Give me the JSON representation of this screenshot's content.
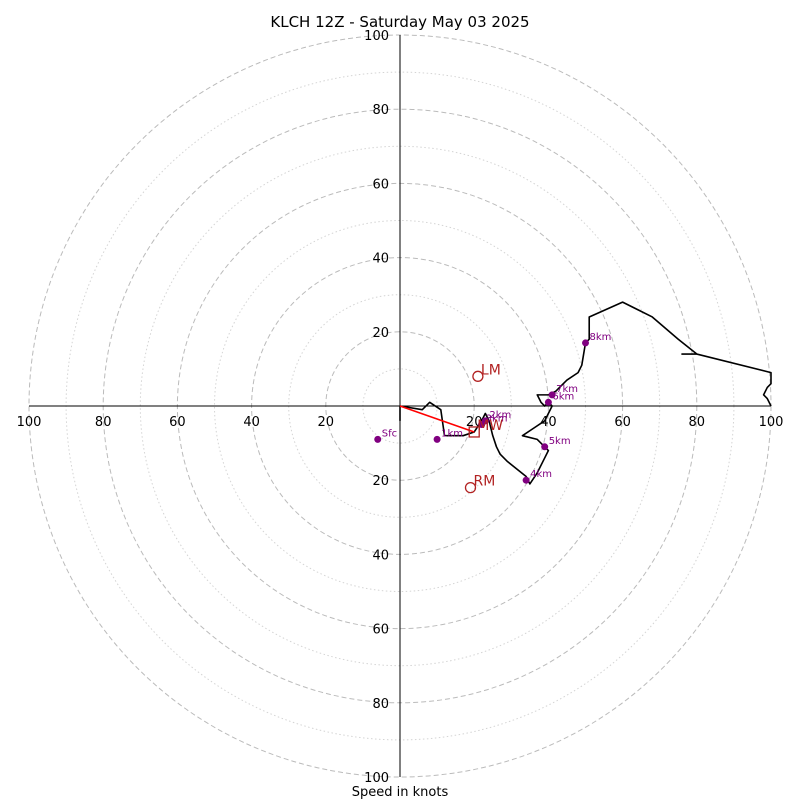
{
  "chart_data": {
    "type": "scatter",
    "title": "KLCH 12Z - Saturday May 03 2025",
    "xlabel": "Speed in knots",
    "ylabel": "",
    "xlim": [
      -100,
      100
    ],
    "ylim": [
      -100,
      100
    ],
    "ring_spacing_major": 20,
    "ring_spacing_minor": 10,
    "x_tick_labels": [
      "100",
      "80",
      "60",
      "40",
      "20",
      "20",
      "40",
      "60",
      "80",
      "100"
    ],
    "y_tick_labels": [
      "100",
      "80",
      "60",
      "40",
      "20",
      "20",
      "40",
      "60",
      "80",
      "100"
    ],
    "x_ticks": [
      -100,
      -80,
      -60,
      -40,
      -20,
      20,
      40,
      60,
      80,
      100
    ],
    "y_ticks": [
      100,
      80,
      60,
      40,
      20,
      -20,
      -40,
      -60,
      -80,
      -100
    ],
    "hodograph": {
      "color": "#000000",
      "points": [
        [
          0,
          -4
        ],
        [
          0,
          0
        ],
        [
          6,
          -1
        ],
        [
          8,
          1
        ],
        [
          11,
          -1
        ],
        [
          12,
          -8
        ],
        [
          17,
          -8
        ],
        [
          20,
          -7
        ],
        [
          22,
          -4
        ],
        [
          23,
          -2
        ],
        [
          24,
          -4
        ],
        [
          25,
          -8
        ],
        [
          26,
          -11
        ],
        [
          27,
          -13
        ],
        [
          29,
          -15
        ],
        [
          34,
          -19
        ],
        [
          35,
          -21
        ],
        [
          37,
          -18
        ],
        [
          39,
          -14
        ],
        [
          40,
          -12
        ],
        [
          37,
          -9
        ],
        [
          33,
          -8
        ],
        [
          36,
          -6
        ],
        [
          39,
          -4
        ],
        [
          41,
          0
        ],
        [
          40,
          1
        ],
        [
          39,
          0
        ],
        [
          38,
          1
        ],
        [
          37,
          3
        ],
        [
          40,
          3
        ],
        [
          42,
          4
        ],
        [
          45,
          7
        ],
        [
          48,
          9
        ],
        [
          49,
          11
        ],
        [
          50,
          17
        ],
        [
          51,
          18
        ],
        [
          51,
          24
        ],
        [
          60,
          28
        ],
        [
          68,
          24
        ],
        [
          75,
          18
        ],
        [
          80,
          14
        ],
        [
          76,
          14
        ],
        [
          80,
          14
        ],
        [
          100,
          9
        ],
        [
          100,
          6
        ],
        [
          99,
          5
        ],
        [
          98,
          3
        ],
        [
          99,
          2
        ],
        [
          100,
          0
        ]
      ]
    },
    "height_markers": {
      "color": "#800080",
      "labels": [
        "Sfc",
        "1km",
        "2km",
        "3km",
        "4km",
        "5km",
        "6km",
        "7km",
        "8km"
      ],
      "points": [
        [
          -6,
          -9
        ],
        [
          10,
          -9
        ],
        [
          23,
          -4
        ],
        [
          22,
          -5
        ],
        [
          34,
          -20
        ],
        [
          39,
          -11
        ],
        [
          40,
          1
        ],
        [
          41,
          3
        ],
        [
          50,
          17
        ]
      ]
    },
    "storm_motion": {
      "color": "#b22222",
      "labels": [
        "MW",
        "LM",
        "RM"
      ],
      "points": [
        [
          20,
          -7
        ],
        [
          21,
          8
        ],
        [
          19,
          -22
        ]
      ],
      "shapes": [
        "square",
        "circle",
        "circle"
      ]
    },
    "shear_vector": {
      "color": "#ff0000",
      "from": [
        0,
        0
      ],
      "to": [
        20,
        -7
      ]
    }
  }
}
